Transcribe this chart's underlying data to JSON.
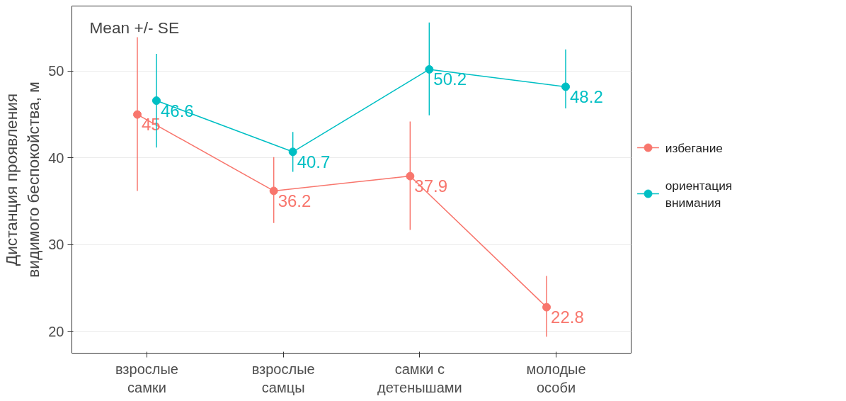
{
  "chart_data": {
    "type": "line",
    "ylabel": "Дистанция проявления\nвидимого беспокойства, м",
    "categories": [
      "взрослые\nсамки",
      "взрослые\nсамцы",
      "самки с\nдетенышами",
      "молодые\nособи"
    ],
    "series": [
      {
        "name": "избегание",
        "color": "#f8766d",
        "values": [
          45,
          36.2,
          37.9,
          22.8
        ],
        "errors": [
          [
            36.2,
            53.9
          ],
          [
            32.5,
            40.1
          ],
          [
            31.7,
            44.2
          ],
          [
            19.4,
            26.4
          ]
        ]
      },
      {
        "name": "ориентация\nвнимания",
        "color": "#00bfc4",
        "values": [
          46.6,
          40.7,
          50.2,
          48.2
        ],
        "errors": [
          [
            41.2,
            52.0
          ],
          [
            38.4,
            43.0
          ],
          [
            44.9,
            55.6
          ],
          [
            45.7,
            52.5
          ]
        ]
      }
    ],
    "ylim": [
      17.5,
      57.5
    ],
    "yticks": [
      20,
      30,
      40,
      50
    ],
    "annotations": [
      "Mean +/- SE"
    ],
    "data_labels": true,
    "grid": "y",
    "legend": "right",
    "marker": "circle"
  }
}
